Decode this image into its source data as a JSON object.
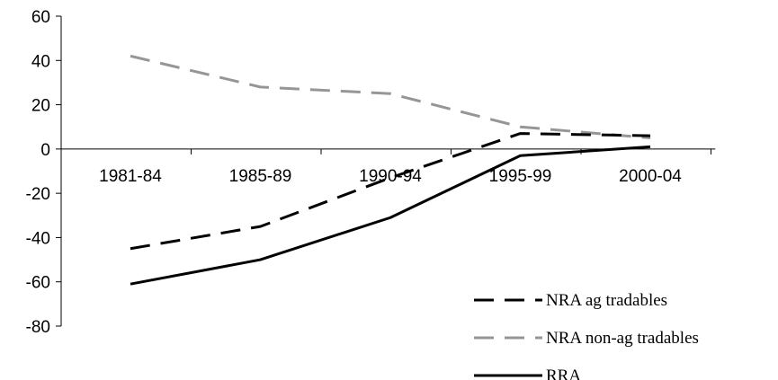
{
  "chart_data": {
    "type": "line",
    "title": "",
    "xlabel": "",
    "ylabel": "",
    "categories": [
      "1981-84",
      "1985-89",
      "1990-94",
      "1995-99",
      "2000-04"
    ],
    "ylim": [
      -80,
      60
    ],
    "yticks": [
      60,
      40,
      20,
      0,
      -20,
      -40,
      -60,
      -80
    ],
    "grid": false,
    "legend_position": "bottom-right",
    "series": [
      {
        "name": "NRA ag tradables",
        "values": [
          -45,
          -35,
          -13,
          7,
          6
        ],
        "color": "#000000",
        "style": "dashed"
      },
      {
        "name": "NRA non-ag tradables",
        "values": [
          42,
          28,
          25,
          10,
          5
        ],
        "color": "#969696",
        "style": "dashed"
      },
      {
        "name": "RRA",
        "values": [
          -61,
          -50,
          -31,
          -3,
          1
        ],
        "color": "#000000",
        "style": "solid"
      }
    ]
  }
}
